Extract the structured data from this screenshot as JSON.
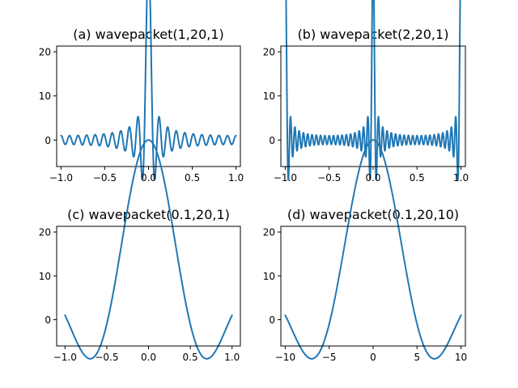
{
  "chart_data": [
    {
      "type": "line",
      "title": "(a) wavepacket(1,20,1)",
      "xlabel": "",
      "ylabel": "",
      "xlim": [
        -1.05,
        1.05
      ],
      "ylim": [
        -6,
        21.3
      ],
      "xticks": [
        -1.0,
        -0.5,
        0.0,
        0.5,
        1.0
      ],
      "xtick_labels": [
        "−1.0",
        "−0.5",
        "0.0",
        "0.5",
        "1.0"
      ],
      "yticks": [
        0,
        10,
        20
      ],
      "ytick_labels": [
        "0",
        "10",
        "20"
      ],
      "grid": false,
      "series": [
        {
          "color": "#1f77b4",
          "function": "dirichlet_sum",
          "params": {
            "f": 1,
            "n": 20,
            "L": 1
          },
          "x_range": [
            -1,
            1
          ],
          "y_range": [
            -4.9,
            20
          ]
        }
      ]
    },
    {
      "type": "line",
      "title": "(b) wavepacket(2,20,1)",
      "xlabel": "",
      "ylabel": "",
      "xlim": [
        -1.05,
        1.05
      ],
      "ylim": [
        -6,
        21.3
      ],
      "xticks": [
        -1.0,
        -0.5,
        0.0,
        0.5,
        1.0
      ],
      "xtick_labels": [
        "−1.0",
        "−0.5",
        "0.0",
        "0.5",
        "1.0"
      ],
      "yticks": [
        0,
        10,
        20
      ],
      "ytick_labels": [
        "0",
        "10",
        "20"
      ],
      "grid": false,
      "series": [
        {
          "color": "#1f77b4",
          "function": "dirichlet_sum",
          "params": {
            "f": 2,
            "n": 20,
            "L": 1
          },
          "x_range": [
            -1,
            1
          ],
          "y_range": [
            -4.9,
            20
          ]
        }
      ]
    },
    {
      "type": "line",
      "title": "(c) wavepacket(0.1,20,1)",
      "xlabel": "",
      "ylabel": "",
      "xlim": [
        -1.1,
        1.1
      ],
      "ylim": [
        -6,
        21.3
      ],
      "xticks": [
        -1.0,
        -0.5,
        0.0,
        0.5,
        1.0
      ],
      "xtick_labels": [
        "−1.0",
        "−0.5",
        "0.0",
        "0.5",
        "1.0"
      ],
      "yticks": [
        0,
        10,
        20
      ],
      "ytick_labels": [
        "0",
        "10",
        "20"
      ],
      "grid": false,
      "series": [
        {
          "color": "#1f77b4",
          "function": "dirichlet_sum",
          "params": {
            "f": 0.1,
            "n": 20,
            "L": 1
          },
          "x_range": [
            -1,
            1
          ],
          "y_range": [
            -4.9,
            20
          ]
        }
      ]
    },
    {
      "type": "line",
      "title": "(d) wavepacket(0.1,20,10)",
      "xlabel": "",
      "ylabel": "",
      "xlim": [
        -10.5,
        10.5
      ],
      "ylim": [
        -6,
        21.3
      ],
      "xticks": [
        -10,
        -5,
        0,
        5,
        10
      ],
      "xtick_labels": [
        "−10",
        "−5",
        "0",
        "5",
        "10"
      ],
      "yticks": [
        0,
        10,
        20
      ],
      "ytick_labels": [
        "0",
        "10",
        "20"
      ],
      "grid": false,
      "series": [
        {
          "color": "#1f77b4",
          "function": "dirichlet_sum",
          "params": {
            "f": 0.1,
            "n": 20,
            "L": 10
          },
          "x_range": [
            -10,
            10
          ],
          "y_range": [
            -4.9,
            20
          ]
        }
      ]
    }
  ]
}
